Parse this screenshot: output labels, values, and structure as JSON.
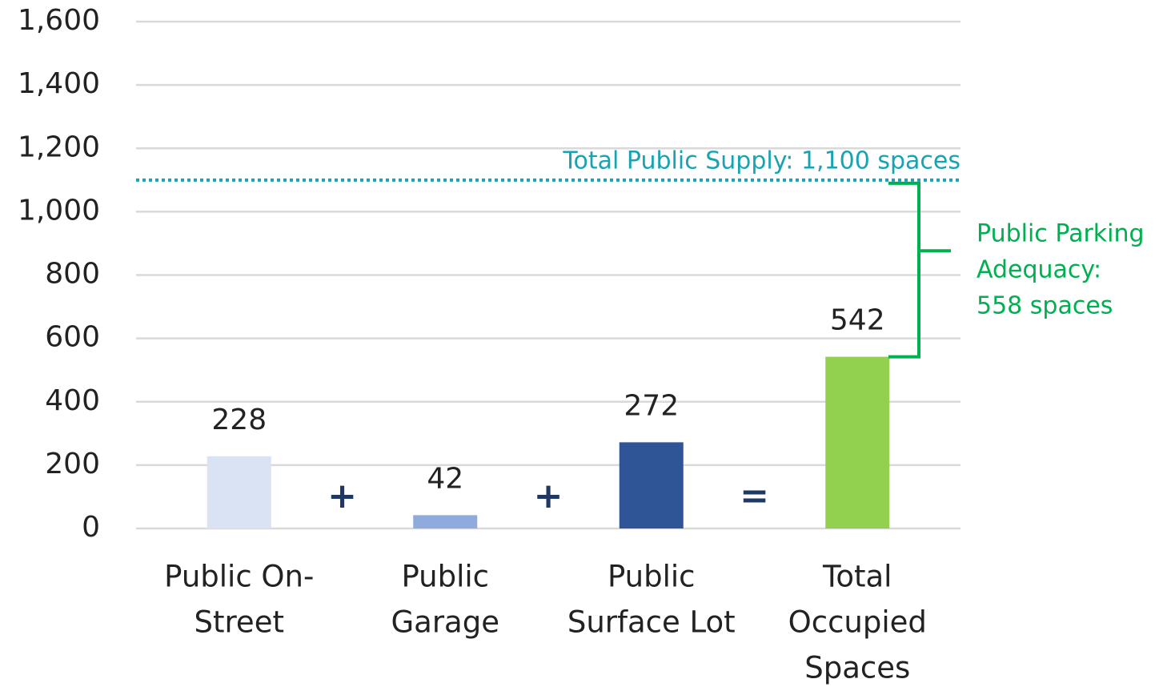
{
  "chart_data": {
    "type": "bar",
    "categories": [
      [
        "Public On-",
        "Street"
      ],
      [
        "Public",
        "Garage"
      ],
      [
        "Public",
        "Surface Lot"
      ],
      [
        "Total",
        "Occupied",
        "Spaces"
      ]
    ],
    "values": [
      228,
      42,
      272,
      542
    ],
    "colors": [
      "#dae3f3",
      "#8faadc",
      "#2f5597",
      "#92d050"
    ],
    "operators": [
      "+",
      "+",
      "="
    ],
    "ylim": [
      0,
      1600
    ],
    "yticks": [
      0,
      200,
      400,
      600,
      800,
      {
        "value": 1000,
        "label": "1,000"
      },
      {
        "value": 1200,
        "label": "1,200"
      },
      {
        "value": 1400,
        "label": "1,400"
      },
      {
        "value": 1600,
        "label": "1,600"
      }
    ],
    "grid": true,
    "reference": {
      "value": 1100,
      "label": "Total Public Supply: 1,100 spaces",
      "color": "#17a3b1"
    },
    "bracket": {
      "lines": [
        "Public Parking",
        "Adequacy:",
        "558 spaces"
      ],
      "color": "#00b050"
    }
  }
}
